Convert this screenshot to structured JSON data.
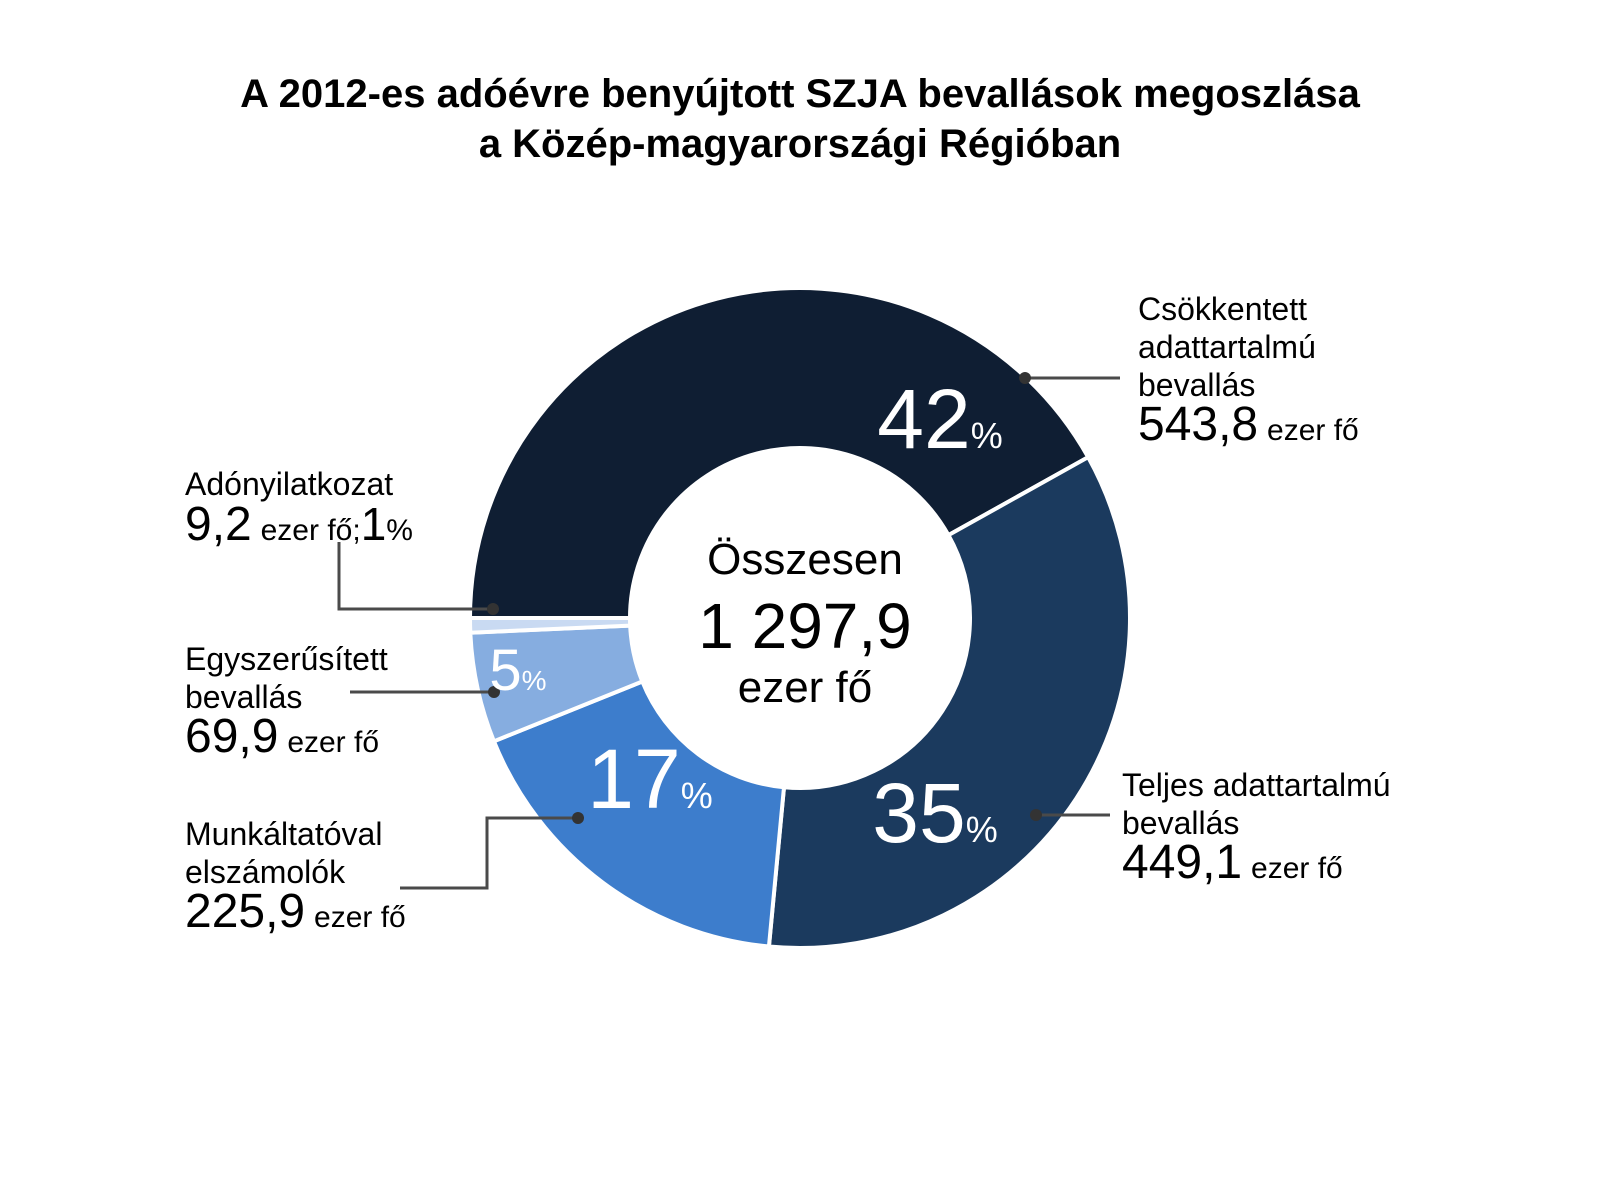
{
  "title_line1": "A 2012-es adóévre benyújtott SZJA bevallások megoszlása",
  "title_line2": "a Közép-magyarországi Régióban",
  "center": {
    "line1": "Összesen",
    "line2": "1 297,9",
    "line3": "ezer fő"
  },
  "chart_data": {
    "type": "pie",
    "title": "A 2012-es adóévre benyújtott SZJA bevallások megoszlása a Közép-magyarországi Régióban",
    "total": 1297.9,
    "unit": "ezer fő",
    "slices": [
      {
        "name_lines": [
          "Csökkentett",
          "adattartalmú",
          "bevallás"
        ],
        "value": 543.8,
        "value_text": "543,8",
        "percent": 42,
        "pct_text": "42",
        "color": "#0f1e33"
      },
      {
        "name_lines": [
          "Teljes adattartalmú",
          "bevallás"
        ],
        "value": 449.1,
        "value_text": "449,1",
        "percent": 35,
        "pct_text": "35",
        "color": "#1b3a5e"
      },
      {
        "name_lines": [
          "Munkáltatóval",
          "elszámolók"
        ],
        "value": 225.9,
        "value_text": "225,9",
        "percent": 17,
        "pct_text": "17",
        "color": "#3d7dcc"
      },
      {
        "name_lines": [
          "Egyszerűsített",
          "bevallás"
        ],
        "value": 69.9,
        "value_text": "69,9",
        "percent": 5,
        "pct_text": "5",
        "color": "#86ade0"
      },
      {
        "name_lines": [
          "Adónyilatkozat"
        ],
        "value": 9.2,
        "value_text": "9,2",
        "percent": 1,
        "pct_text": "1",
        "color": "#c9daf2"
      }
    ],
    "percent_sign": "%",
    "separator": ";"
  }
}
